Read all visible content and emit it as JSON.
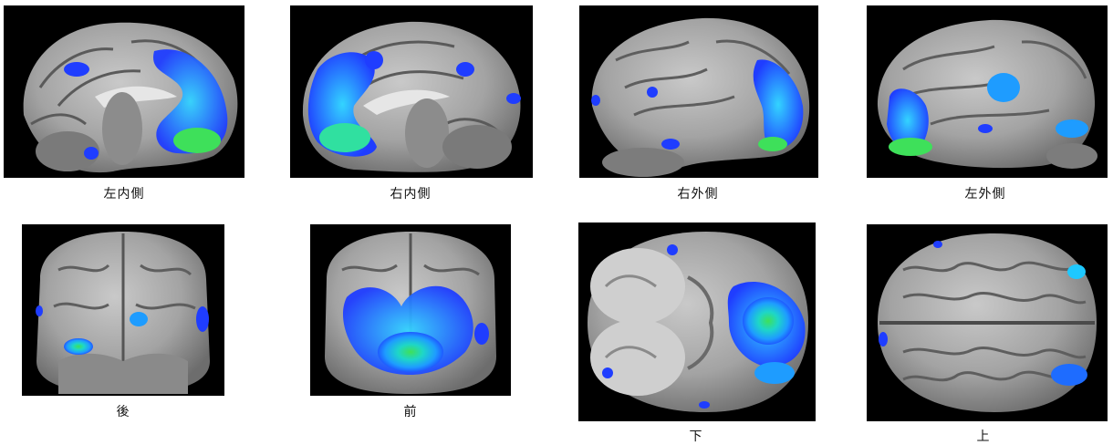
{
  "figure": {
    "colors": {
      "background": "#000000",
      "brain_gray": "#9a9a9a",
      "activation_low": "#1f3dff",
      "activation_mid": "#1ec8ff",
      "activation_high": "#3ee05a"
    },
    "views": [
      {
        "id": "left-medial",
        "label": "左内側",
        "type": "sagittal-medial"
      },
      {
        "id": "right-medial",
        "label": "右内側",
        "type": "sagittal-medial"
      },
      {
        "id": "right-lateral",
        "label": "右外側",
        "type": "lateral"
      },
      {
        "id": "left-lateral",
        "label": "左外側",
        "type": "lateral"
      },
      {
        "id": "posterior",
        "label": "後",
        "type": "coronal"
      },
      {
        "id": "anterior",
        "label": "前",
        "type": "coronal"
      },
      {
        "id": "inferior",
        "label": "下",
        "type": "axial"
      },
      {
        "id": "superior",
        "label": "上",
        "type": "axial"
      }
    ]
  }
}
